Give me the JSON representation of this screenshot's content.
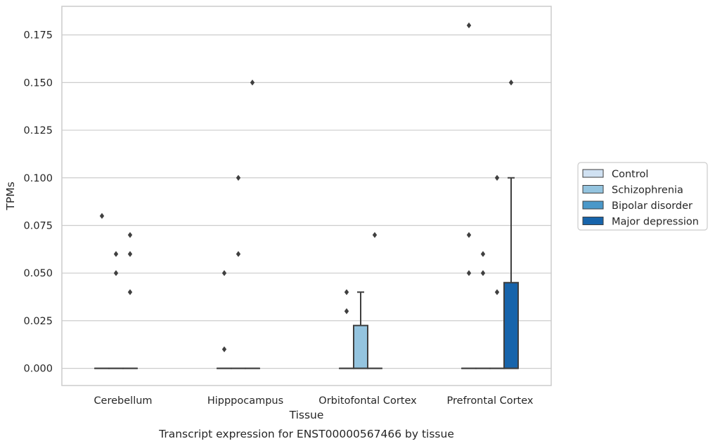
{
  "chart_data": {
    "type": "box",
    "title": "",
    "caption": "Transcript expression for ENST00000567466 by tissue",
    "xlabel": "Tissue",
    "ylabel": "TPMs",
    "ylim": [
      -0.009,
      0.19
    ],
    "yticks": [
      "0.000",
      "0.025",
      "0.050",
      "0.075",
      "0.100",
      "0.125",
      "0.150",
      "0.175"
    ],
    "grid": true,
    "legend_position": "right",
    "categories": [
      "Cerebellum",
      "Hipppocampus",
      "Orbitofontal Cortex",
      "Prefrontal Cortex"
    ],
    "series": [
      {
        "name": "Control",
        "color": "#d0e1f2",
        "boxes": [
          {
            "q1": 0,
            "median": 0,
            "q3": 0,
            "whisker_low": 0,
            "whisker_high": 0,
            "outliers": [
              0.08
            ]
          },
          {
            "q1": 0,
            "median": 0,
            "q3": 0,
            "whisker_low": 0,
            "whisker_high": 0,
            "outliers": [
              0.05,
              0.01
            ]
          },
          {
            "q1": 0,
            "median": 0,
            "q3": 0,
            "whisker_low": 0,
            "whisker_high": 0,
            "outliers": [
              0.04,
              0.03
            ]
          },
          {
            "q1": 0,
            "median": 0,
            "q3": 0,
            "whisker_low": 0,
            "whisker_high": 0,
            "outliers": [
              0.18,
              0.07,
              0.05
            ]
          }
        ]
      },
      {
        "name": "Schizophrenia",
        "color": "#94c4df",
        "boxes": [
          {
            "q1": 0,
            "median": 0,
            "q3": 0,
            "whisker_low": 0,
            "whisker_high": 0,
            "outliers": [
              0.06,
              0.05
            ]
          },
          {
            "q1": 0,
            "median": 0,
            "q3": 0,
            "whisker_low": 0,
            "whisker_high": 0,
            "outliers": [
              0.1,
              0.06
            ]
          },
          {
            "q1": 0,
            "median": 0,
            "q3": 0.0225,
            "whisker_low": 0,
            "whisker_high": 0.04,
            "outliers": []
          },
          {
            "q1": 0,
            "median": 0,
            "q3": 0,
            "whisker_low": 0,
            "whisker_high": 0,
            "outliers": [
              0.06,
              0.05
            ]
          }
        ]
      },
      {
        "name": "Bipolar disorder",
        "color": "#4a98c9",
        "boxes": [
          {
            "q1": 0,
            "median": 0,
            "q3": 0,
            "whisker_low": 0,
            "whisker_high": 0,
            "outliers": [
              0.07,
              0.06,
              0.04
            ]
          },
          {
            "q1": 0,
            "median": 0,
            "q3": 0,
            "whisker_low": 0,
            "whisker_high": 0,
            "outliers": [
              0.15
            ]
          },
          {
            "q1": 0,
            "median": 0,
            "q3": 0,
            "whisker_low": 0,
            "whisker_high": 0,
            "outliers": [
              0.07
            ]
          },
          {
            "q1": 0,
            "median": 0,
            "q3": 0,
            "whisker_low": 0,
            "whisker_high": 0,
            "outliers": [
              0.1,
              0.04
            ]
          }
        ]
      },
      {
        "name": "Major depression",
        "color": "#1764ab",
        "boxes": [
          null,
          null,
          null,
          {
            "q1": 0,
            "median": 0,
            "q3": 0.045,
            "whisker_low": 0,
            "whisker_high": 0.1,
            "outliers": [
              0.15
            ]
          }
        ]
      }
    ]
  }
}
